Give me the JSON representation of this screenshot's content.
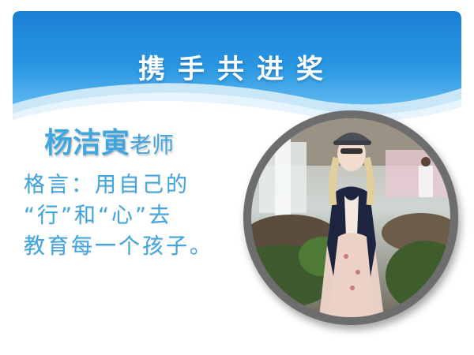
{
  "slide": {
    "title": "携手共进奖",
    "teacher_name": "杨洁寅",
    "teacher_suffix": "老师",
    "motto_lines": [
      "格言：用自己的",
      "“行”和“心”去",
      "教育每一个孩子。"
    ]
  },
  "colors": {
    "header_blue": "#1e86d8",
    "text_blue": "#3fa6df",
    "ring_gray": "#6d6d6d"
  },
  "photo": {
    "subject": "teacher-portrait-photo"
  }
}
